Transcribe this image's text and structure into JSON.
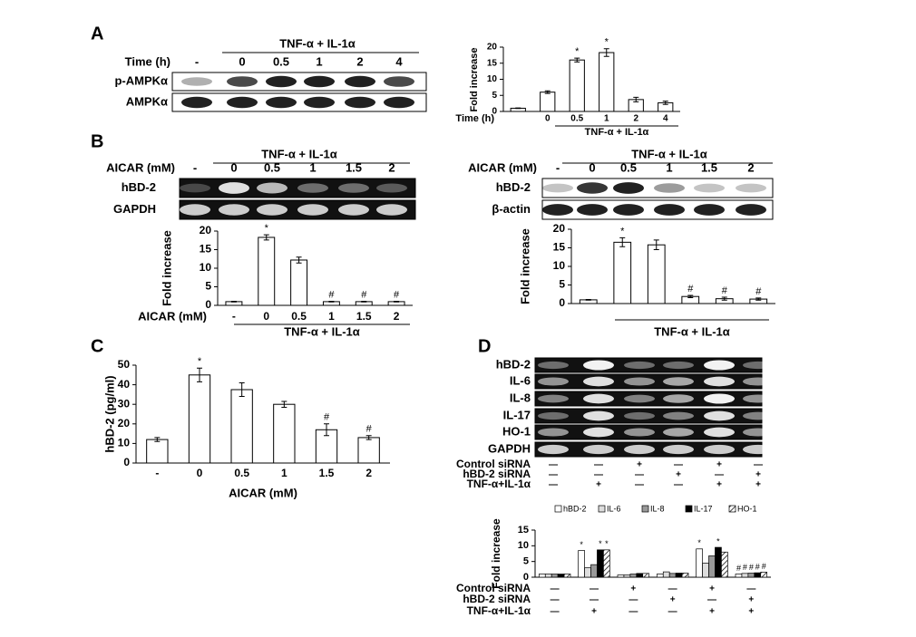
{
  "panels": [
    "A",
    "B",
    "C",
    "D"
  ],
  "blots": [
    {
      "header": "TNF-α + IL-1α",
      "lane_label": "Time (h)",
      "lanes": [
        "-",
        "0",
        "0.5",
        "1",
        "2",
        "4"
      ],
      "rows": [
        "p-AMPKα",
        "AMPKα"
      ]
    },
    {
      "header": "TNF-α + IL-1α",
      "lane_label": "AICAR (mM)",
      "lanes": [
        "-",
        "0",
        "0.5",
        "1",
        "1.5",
        "2"
      ],
      "rows": [
        "hBD-2",
        "GAPDH"
      ]
    },
    {
      "header": "TNF-α + IL-1α",
      "lane_label": "AICAR (mM)",
      "lanes": [
        "-",
        "0",
        "0.5",
        "1",
        "1.5",
        "2"
      ],
      "rows": [
        "hBD-2",
        "β-actin"
      ]
    },
    {
      "rows": [
        "hBD-2",
        "IL-6",
        "IL-8",
        "IL-17",
        "HO-1",
        "GAPDH"
      ]
    }
  ],
  "chart_data": [
    {
      "type": "bar",
      "y_label": "Fold increase",
      "x_label": "Time (h)",
      "group_label": "TNF-α + IL-1α",
      "categories": [
        null,
        "0",
        "0.5",
        "1",
        "2",
        "4"
      ],
      "values": [
        1,
        6,
        16,
        18.3,
        3.7,
        2.7
      ],
      "errors": [
        0.1,
        0.4,
        0.6,
        1.2,
        0.7,
        0.5
      ],
      "markers": [
        null,
        null,
        "*",
        "*",
        null,
        null
      ],
      "color": "#ffffff",
      "ylim": [
        0,
        20
      ],
      "yticks": [
        0,
        5,
        10,
        15,
        20
      ]
    },
    {
      "type": "bar",
      "y_label": "Fold increase",
      "x_label": "AICAR (mM)",
      "group_label": "TNF-α + IL-1α",
      "categories": [
        "-",
        "0",
        "0.5",
        "1",
        "1.5",
        "2"
      ],
      "values": [
        1,
        18.3,
        12.2,
        1,
        1,
        1
      ],
      "errors": [
        0.1,
        0.7,
        0.8,
        0.1,
        0.1,
        0.1
      ],
      "markers": [
        null,
        "*",
        null,
        "#",
        "#",
        "#"
      ],
      "color": "#ffffff",
      "ylim": [
        0,
        20
      ],
      "yticks": [
        0,
        5,
        10,
        15,
        20
      ]
    },
    {
      "type": "bar",
      "y_label": "Fold increase",
      "group_label": "TNF-α + IL-1α",
      "categories": [
        null,
        null,
        null,
        null,
        null,
        null
      ],
      "values": [
        1,
        16.5,
        15.8,
        1.9,
        1.3,
        1.2
      ],
      "errors": [
        0.1,
        1.2,
        1.3,
        0.3,
        0.4,
        0.3
      ],
      "markers": [
        null,
        "*",
        null,
        "#",
        "#",
        "#"
      ],
      "color": "#ffffff",
      "ylim": [
        0,
        20
      ],
      "yticks": [
        0,
        5,
        10,
        15,
        20
      ]
    },
    {
      "type": "bar",
      "y_label": "hBD-2 (pg/ml)",
      "x_label": "AICAR (mM)",
      "categories": [
        "-",
        "0",
        "0.5",
        "1",
        "1.5",
        "2"
      ],
      "values": [
        12,
        45,
        37.5,
        30,
        17,
        13
      ],
      "errors": [
        1,
        3.5,
        3.5,
        1.5,
        3,
        1
      ],
      "markers": [
        null,
        "*",
        null,
        null,
        "#",
        "#"
      ],
      "color": "#ffffff",
      "ylim": [
        0,
        50
      ],
      "yticks": [
        0,
        10,
        20,
        30,
        40,
        50
      ]
    },
    {
      "type": "grouped_bar",
      "y_label": "Fold increase",
      "ylim": [
        0,
        15
      ],
      "yticks": [
        0,
        5,
        10,
        15
      ],
      "series": [
        {
          "name": "hBD-2",
          "color": "#ffffff",
          "values": [
            1,
            8.5,
            0.7,
            1,
            9,
            1
          ],
          "markers": [
            null,
            "*",
            null,
            null,
            "*",
            "#"
          ]
        },
        {
          "name": "IL-6",
          "color": "#dddddd",
          "values": [
            1,
            3,
            0.7,
            1.7,
            4.5,
            1.2
          ],
          "markers": [
            null,
            null,
            null,
            null,
            null,
            "#"
          ]
        },
        {
          "name": "IL-8",
          "color": "#999999",
          "values": [
            1,
            4,
            1,
            1.2,
            6.8,
            1.3
          ],
          "markers": [
            null,
            null,
            null,
            null,
            null,
            "#"
          ]
        },
        {
          "name": "IL-17",
          "color": "#000000",
          "values": [
            1,
            8.7,
            1.2,
            1.3,
            9.5,
            1.4
          ],
          "markers": [
            null,
            "*",
            null,
            null,
            "*",
            "#"
          ]
        },
        {
          "name": "HO-1",
          "color": "#ffffff",
          "hatch": true,
          "values": [
            1,
            8.7,
            1.2,
            1.3,
            8,
            1.6
          ],
          "markers": [
            null,
            "*",
            null,
            null,
            null,
            "#"
          ]
        }
      ],
      "conditions": [
        {
          "label": "Control siRNA",
          "values": [
            "—",
            "—",
            "+",
            "—",
            "+",
            "—"
          ]
        },
        {
          "label": "hBD-2 siRNA",
          "values": [
            "—",
            "—",
            "—",
            "+",
            "—",
            "+"
          ]
        },
        {
          "label": "TNF-α+IL-1α",
          "values": [
            "—",
            "+",
            "—",
            "—",
            "+",
            "+"
          ]
        }
      ]
    }
  ]
}
